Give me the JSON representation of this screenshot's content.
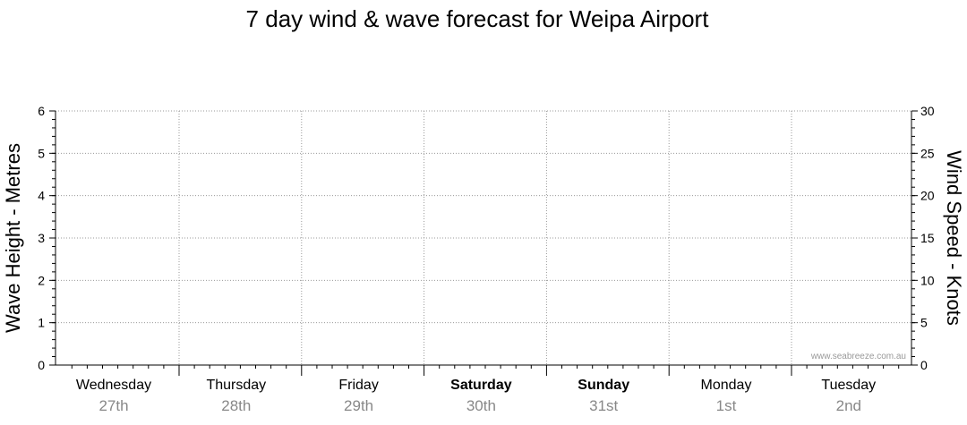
{
  "chart_data": {
    "type": "line",
    "title": "7 day wind & wave forecast for Weipa Airport",
    "ylabel_left": "Wave Height - Metres",
    "ylabel_right": "Wind Speed - Knots",
    "ylim_left": [
      0,
      6
    ],
    "ylim_right": [
      0,
      30
    ],
    "yticks_left": [
      0,
      1,
      2,
      3,
      4,
      5,
      6
    ],
    "yticks_right": [
      0,
      5,
      10,
      15,
      20,
      25,
      30
    ],
    "grid": true,
    "days": [
      {
        "name": "Wednesday",
        "date": "27th",
        "bold": false
      },
      {
        "name": "Thursday",
        "date": "28th",
        "bold": false
      },
      {
        "name": "Friday",
        "date": "29th",
        "bold": false
      },
      {
        "name": "Saturday",
        "date": "30th",
        "bold": true
      },
      {
        "name": "Sunday",
        "date": "31st",
        "bold": true
      },
      {
        "name": "Monday",
        "date": "1st",
        "bold": false
      },
      {
        "name": "Tuesday",
        "date": "2nd",
        "bold": false
      }
    ],
    "series": [],
    "watermark": "www.seabreeze.com.au"
  }
}
